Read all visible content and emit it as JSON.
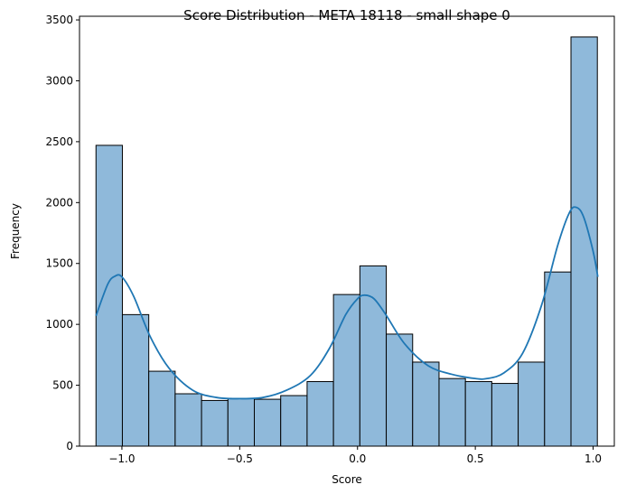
{
  "chart_data": {
    "type": "bar",
    "title": "Score Distribution - META 18118 - small shape 0",
    "xlabel": "Score",
    "ylabel": "Frequency",
    "xlim": [
      -1.18,
      1.09
    ],
    "ylim": [
      0,
      3530
    ],
    "xticks": [
      -1.0,
      -0.5,
      0.0,
      0.5,
      1.0
    ],
    "xtick_labels": [
      "−1.0",
      "−0.5",
      "0.0",
      "0.5",
      "1.0"
    ],
    "yticks": [
      0,
      500,
      1000,
      1500,
      2000,
      2500,
      3000,
      3500
    ],
    "ytick_labels": [
      "0",
      "500",
      "1000",
      "1500",
      "2000",
      "2500",
      "3000",
      "3500"
    ],
    "bin_edges": [
      -1.11,
      -0.998,
      -0.886,
      -0.774,
      -0.662,
      -0.55,
      -0.438,
      -0.326,
      -0.214,
      -0.102,
      0.01,
      0.122,
      0.234,
      0.346,
      0.458,
      0.57,
      0.682,
      0.794,
      0.906,
      1.018
    ],
    "values": [
      2470,
      1080,
      615,
      430,
      375,
      390,
      385,
      415,
      530,
      1245,
      1480,
      920,
      690,
      555,
      530,
      515,
      690,
      1430,
      3360
    ],
    "bar_color": "#8fb9da",
    "bar_edge_color": "#000000",
    "kde": {
      "color": "#1f77b4",
      "x": [
        -1.11,
        -1.06,
        -1.03,
        -1.0,
        -0.95,
        -0.88,
        -0.8,
        -0.7,
        -0.6,
        -0.5,
        -0.4,
        -0.3,
        -0.2,
        -0.12,
        -0.05,
        0.0,
        0.03,
        0.07,
        0.12,
        0.2,
        0.3,
        0.4,
        0.5,
        0.55,
        0.62,
        0.7,
        0.78,
        0.85,
        0.9,
        0.93,
        0.96,
        1.0,
        1.02
      ],
      "y": [
        1070,
        1330,
        1395,
        1390,
        1230,
        900,
        640,
        460,
        400,
        390,
        400,
        460,
        580,
        800,
        1080,
        1210,
        1240,
        1210,
        1080,
        840,
        660,
        590,
        555,
        555,
        600,
        760,
        1150,
        1650,
        1920,
        1960,
        1880,
        1600,
        1390
      ]
    },
    "grid": false,
    "legend": "none"
  }
}
